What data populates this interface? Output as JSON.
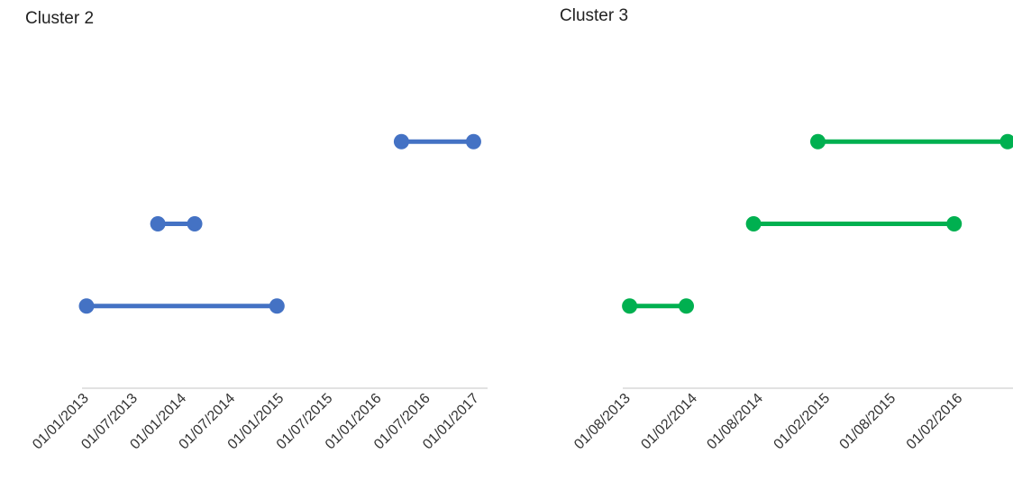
{
  "chart_data": [
    {
      "type": "line",
      "title": "Cluster 2",
      "x_axis": {
        "scale": "date",
        "range": [
          "2013-01-01",
          "2017-01-01"
        ],
        "tick_labels": [
          "01/01/2013",
          "01/07/2013",
          "01/01/2014",
          "01/07/2014",
          "01/01/2015",
          "01/07/2015",
          "01/01/2016",
          "01/07/2016",
          "01/01/2017"
        ]
      },
      "y_axis": {
        "visible": false,
        "range": [
          0,
          4
        ]
      },
      "grid": false,
      "legend": "none",
      "series": [
        {
          "color": "#4472C4",
          "points": [
            {
              "x": "2013-01-01",
              "y": 1
            },
            {
              "x": "2014-12-15",
              "y": 1
            }
          ]
        },
        {
          "color": "#4472C4",
          "points": [
            {
              "x": "2013-09-25",
              "y": 2
            },
            {
              "x": "2014-02-10",
              "y": 2
            }
          ]
        },
        {
          "color": "#4472C4",
          "points": [
            {
              "x": "2016-03-25",
              "y": 3
            },
            {
              "x": "2016-12-20",
              "y": 3
            }
          ]
        }
      ]
    },
    {
      "type": "line",
      "title": "Cluster 3",
      "x_axis": {
        "scale": "date",
        "range": [
          "2013-08-01",
          "2016-06-10"
        ],
        "tick_labels": [
          "01/08/2013",
          "01/02/2014",
          "01/08/2014",
          "01/02/2015",
          "01/08/2015",
          "01/02/2016"
        ]
      },
      "y_axis": {
        "visible": false,
        "range": [
          0,
          4
        ]
      },
      "grid": false,
      "legend": "none",
      "series": [
        {
          "color": "#00B050",
          "points": [
            {
              "x": "2013-08-05",
              "y": 1
            },
            {
              "x": "2014-01-08",
              "y": 1
            }
          ]
        },
        {
          "color": "#00B050",
          "points": [
            {
              "x": "2014-07-12",
              "y": 2
            },
            {
              "x": "2016-01-15",
              "y": 2
            }
          ]
        },
        {
          "color": "#00B050",
          "points": [
            {
              "x": "2015-01-05",
              "y": 3
            },
            {
              "x": "2016-06-10",
              "y": 3
            }
          ]
        }
      ]
    }
  ]
}
